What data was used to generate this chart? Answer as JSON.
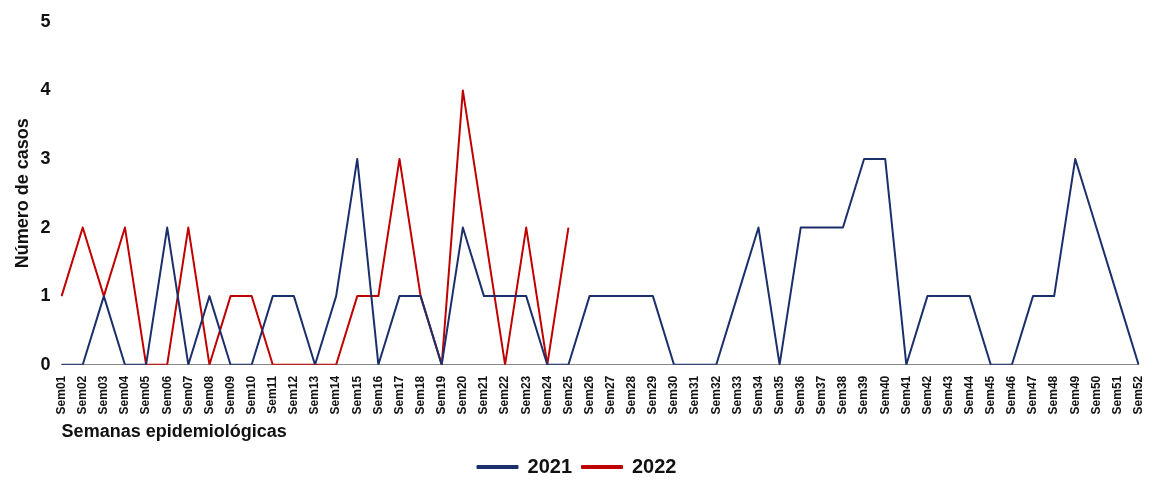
{
  "chart_data": {
    "type": "line",
    "xlabel": "Semanas epidemiológicas",
    "ylabel": "Número de casos",
    "categories": [
      "Sem01",
      "Sem02",
      "Sem03",
      "Sem04",
      "Sem05",
      "Sem06",
      "Sem07",
      "Sem08",
      "Sem09",
      "Sem10",
      "Sem11",
      "Sem12",
      "Sem13",
      "Sem14",
      "Sem15",
      "Sem16",
      "Sem17",
      "Sem18",
      "Sem19",
      "Sem20",
      "Sem21",
      "Sem22",
      "Sem23",
      "Sem24",
      "Sem25",
      "Sem26",
      "Sem27",
      "Sem28",
      "Sem29",
      "Sem30",
      "Sem31",
      "Sem32",
      "Sem33",
      "Sem34",
      "Sem35",
      "Sem36",
      "Sem37",
      "Sem38",
      "Sem39",
      "Sem40",
      "Sem41",
      "Sem42",
      "Sem43",
      "Sem44",
      "Sem45",
      "Sem46",
      "Sem47",
      "Sem48",
      "Sem49",
      "Sem50",
      "Sem51",
      "Sem52"
    ],
    "series": [
      {
        "name": "2021",
        "color": "#1b2f6b",
        "values": [
          0,
          0,
          1,
          0,
          0,
          2,
          0,
          1,
          0,
          0,
          1,
          1,
          0,
          1,
          3,
          0,
          1,
          1,
          0,
          2,
          1,
          1,
          1,
          0,
          0,
          1,
          1,
          1,
          1,
          0,
          0,
          0,
          1,
          2,
          0,
          2,
          2,
          2,
          3,
          3,
          0,
          1,
          1,
          1,
          0,
          0,
          1,
          1,
          3,
          2,
          1,
          0
        ]
      },
      {
        "name": "2022",
        "color": "#c00000",
        "values": [
          1,
          2,
          1,
          2,
          0,
          0,
          2,
          0,
          1,
          1,
          0,
          0,
          0,
          0,
          1,
          1,
          3,
          1,
          0,
          4,
          2,
          0,
          2,
          0,
          2,
          null,
          null,
          null,
          null,
          null,
          null,
          null,
          null,
          null,
          null,
          null,
          null,
          null,
          null,
          null,
          null,
          null,
          null,
          null,
          null,
          null,
          null,
          null,
          null,
          null,
          null,
          null
        ]
      }
    ],
    "ylim": [
      0,
      5
    ],
    "yticks": [
      0,
      1,
      2,
      3,
      4,
      5
    ],
    "grid": false,
    "legend": "bottom",
    "line_style": "solid"
  }
}
